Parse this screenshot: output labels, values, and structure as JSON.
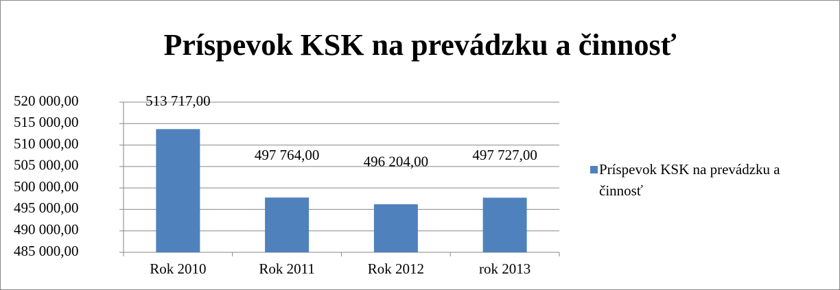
{
  "chart_data": {
    "type": "bar",
    "title": "Príspevok KSK na prevádzku a činnosť",
    "categories": [
      "Rok 2010",
      "Rok 2011",
      "Rok 2012",
      "rok 2013"
    ],
    "series": [
      {
        "name": "Príspevok KSK na prevádzku a činnosť",
        "color": "#4f81bd",
        "values": [
          513717,
          497764,
          496204,
          497727
        ],
        "value_labels": [
          "513 717,00",
          "497 764,00",
          "496 204,00",
          "497 727,00"
        ]
      }
    ],
    "ylim": [
      485000,
      520000
    ],
    "yticks": [
      {
        "value": 485000,
        "label": "485 000,00"
      },
      {
        "value": 490000,
        "label": "490 000,00"
      },
      {
        "value": 495000,
        "label": "495 000,00"
      },
      {
        "value": 500000,
        "label": "500 000,00"
      },
      {
        "value": 505000,
        "label": "505 000,00"
      },
      {
        "value": 510000,
        "label": "510 000,00"
      },
      {
        "value": 515000,
        "label": "515 000,00"
      },
      {
        "value": 520000,
        "label": "520 000,00"
      }
    ],
    "grid": true,
    "legend": "right"
  }
}
